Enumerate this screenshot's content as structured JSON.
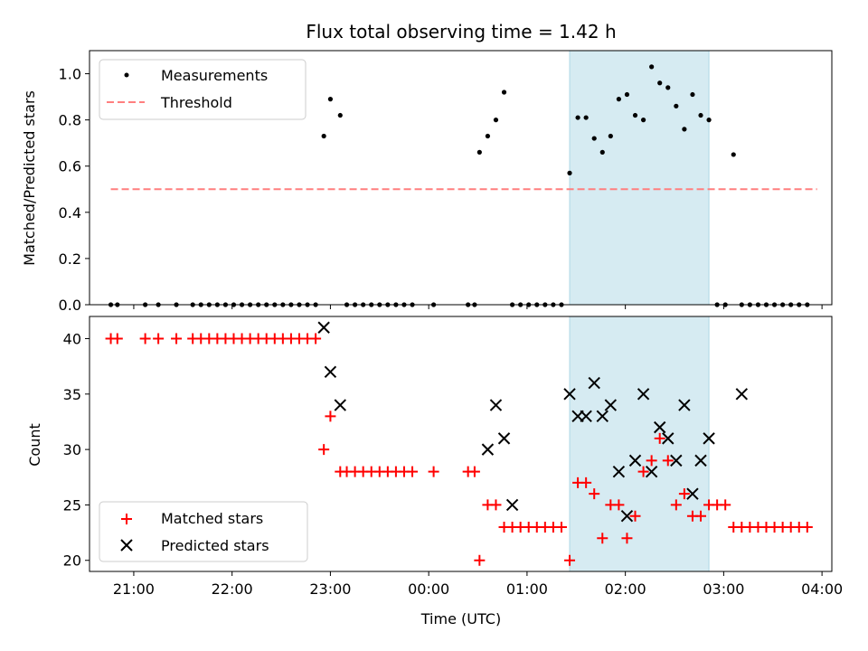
{
  "title": "Flux total observing time = 1.42 h",
  "colors": {
    "measurement": "#000000",
    "threshold": "#ff7f7f",
    "matched": "#ff0000",
    "predicted": "#000000",
    "span": "#add8e6"
  },
  "chart_data": [
    {
      "type": "scatter",
      "ylabel": "Matched/Predicted stars",
      "xlim": [
        "20:33",
        "04:06"
      ],
      "ylim": [
        0,
        1.1
      ],
      "yticks": [
        "0.0",
        "0.2",
        "0.4",
        "0.6",
        "0.8",
        "1.0"
      ],
      "legend": {
        "position": "top-left",
        "entries": [
          "Measurements",
          "Threshold"
        ]
      },
      "threshold": {
        "name": "Threshold",
        "value": 0.5,
        "x_range": [
          "20:46",
          "03:57"
        ]
      },
      "highlight_span": [
        "01:26",
        "02:51"
      ],
      "series": [
        {
          "name": "Measurements",
          "x": [
            "20:46",
            "20:50",
            "21:07",
            "21:15",
            "21:26",
            "21:36",
            "21:41",
            "21:46",
            "21:51",
            "21:56",
            "22:01",
            "22:06",
            "22:11",
            "22:16",
            "22:21",
            "22:26",
            "22:31",
            "22:36",
            "22:41",
            "22:46",
            "22:51",
            "22:56",
            "23:00",
            "23:06",
            "23:10",
            "23:15",
            "23:20",
            "23:25",
            "23:30",
            "23:35",
            "23:40",
            "23:45",
            "23:50",
            "00:03",
            "00:24",
            "00:28",
            "00:31",
            "00:36",
            "00:41",
            "00:46",
            "00:51",
            "00:56",
            "01:01",
            "01:06",
            "01:11",
            "01:16",
            "01:21",
            "01:26",
            "01:31",
            "01:36",
            "01:41",
            "01:46",
            "01:51",
            "01:56",
            "02:01",
            "02:06",
            "02:11",
            "02:16",
            "02:21",
            "02:26",
            "02:31",
            "02:36",
            "02:41",
            "02:46",
            "02:51",
            "02:56",
            "03:01",
            "03:06",
            "03:11",
            "03:16",
            "03:21",
            "03:26",
            "03:31",
            "03:36",
            "03:41",
            "03:46",
            "03:51"
          ],
          "y": [
            0,
            0,
            0,
            0,
            0,
            0,
            0,
            0,
            0,
            0,
            0,
            0,
            0,
            0,
            0,
            0,
            0,
            0,
            0,
            0,
            0,
            0.73,
            0.89,
            0.82,
            0,
            0,
            0,
            0,
            0,
            0,
            0,
            0,
            0,
            0,
            0,
            0,
            0.66,
            0.73,
            0.8,
            0.92,
            0,
            0,
            0,
            0,
            0,
            0,
            0,
            0.57,
            0.81,
            0.81,
            0.72,
            0.66,
            0.73,
            0.89,
            0.91,
            0.82,
            0.8,
            1.03,
            0.96,
            0.94,
            0.86,
            0.76,
            0.91,
            0.82,
            0.8,
            0,
            0,
            0.65,
            0,
            0,
            0,
            0,
            0,
            0,
            0,
            0,
            0
          ]
        }
      ]
    },
    {
      "type": "scatter",
      "xlabel": "Time (UTC)",
      "ylabel": "Count",
      "xlim": [
        "20:33",
        "04:06"
      ],
      "ylim": [
        19,
        42
      ],
      "xticks": [
        "21:00",
        "22:00",
        "23:00",
        "00:00",
        "01:00",
        "02:00",
        "03:00",
        "04:00"
      ],
      "yticks": [
        "20",
        "25",
        "30",
        "35",
        "40"
      ],
      "legend": {
        "position": "bottom-left",
        "entries": [
          "Matched stars",
          "Predicted stars"
        ]
      },
      "highlight_span": [
        "01:26",
        "02:51"
      ],
      "series": [
        {
          "name": "Matched stars",
          "x": [
            "20:46",
            "20:50",
            "21:07",
            "21:15",
            "21:26",
            "21:36",
            "21:41",
            "21:46",
            "21:51",
            "21:56",
            "22:01",
            "22:06",
            "22:11",
            "22:16",
            "22:21",
            "22:26",
            "22:31",
            "22:36",
            "22:41",
            "22:46",
            "22:51",
            "22:56",
            "23:00",
            "23:06",
            "23:10",
            "23:15",
            "23:20",
            "23:25",
            "23:30",
            "23:35",
            "23:40",
            "23:45",
            "23:50",
            "00:03",
            "00:24",
            "00:28",
            "00:31",
            "00:36",
            "00:41",
            "00:46",
            "00:51",
            "00:56",
            "01:01",
            "01:06",
            "01:11",
            "01:16",
            "01:21",
            "01:26",
            "01:31",
            "01:36",
            "01:41",
            "01:46",
            "01:51",
            "01:56",
            "02:01",
            "02:06",
            "02:11",
            "02:16",
            "02:21",
            "02:26",
            "02:31",
            "02:36",
            "02:41",
            "02:46",
            "02:51",
            "02:56",
            "03:01",
            "03:06",
            "03:11",
            "03:16",
            "03:21",
            "03:26",
            "03:31",
            "03:36",
            "03:41",
            "03:46",
            "03:51"
          ],
          "y": [
            40,
            40,
            40,
            40,
            40,
            40,
            40,
            40,
            40,
            40,
            40,
            40,
            40,
            40,
            40,
            40,
            40,
            40,
            40,
            40,
            40,
            30,
            33,
            28,
            28,
            28,
            28,
            28,
            28,
            28,
            28,
            28,
            28,
            28,
            28,
            28,
            20,
            25,
            25,
            23,
            23,
            23,
            23,
            23,
            23,
            23,
            23,
            20,
            27,
            27,
            26,
            22,
            25,
            25,
            22,
            24,
            28,
            29,
            31,
            29,
            25,
            26,
            24,
            24,
            25,
            25,
            25,
            23,
            23,
            23,
            23,
            23,
            23,
            23,
            23,
            23,
            23
          ]
        },
        {
          "name": "Predicted stars",
          "x": [
            "22:56",
            "23:00",
            "23:06",
            "00:36",
            "00:41",
            "00:46",
            "00:51",
            "01:26",
            "01:31",
            "01:36",
            "01:41",
            "01:46",
            "01:51",
            "01:56",
            "02:01",
            "02:06",
            "02:11",
            "02:16",
            "02:21",
            "02:26",
            "02:31",
            "02:36",
            "02:41",
            "02:46",
            "02:51",
            "03:11"
          ],
          "y": [
            41,
            37,
            34,
            30,
            34,
            31,
            25,
            35,
            33,
            33,
            36,
            33,
            34,
            28,
            24,
            29,
            35,
            28,
            32,
            31,
            29,
            34,
            26,
            29,
            31,
            35
          ]
        }
      ]
    }
  ]
}
